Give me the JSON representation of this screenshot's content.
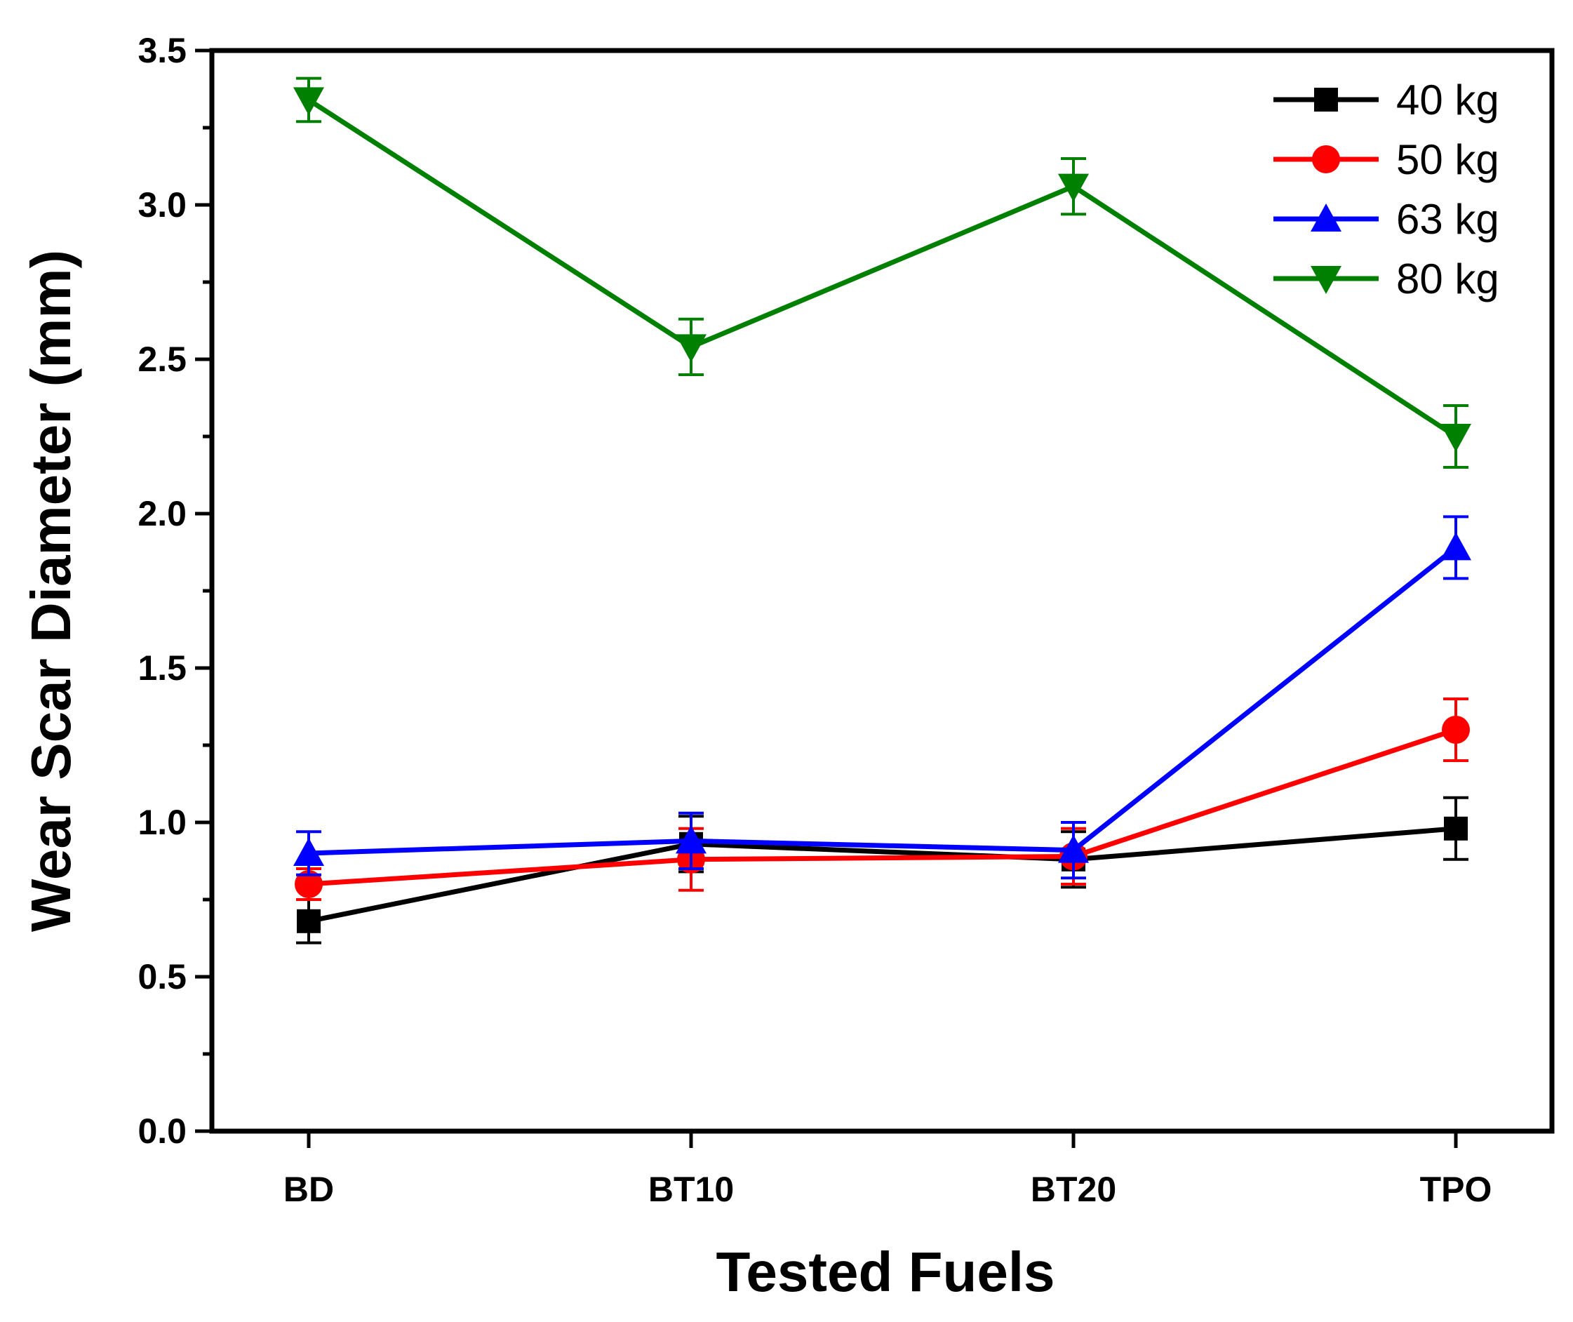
{
  "chart_data": {
    "type": "line",
    "title": "",
    "xlabel": "Tested Fuels",
    "ylabel": "Wear Scar Diameter (mm)",
    "categories": [
      "BD",
      "BT10",
      "BT20",
      "TPO"
    ],
    "ylim": [
      0.0,
      3.5
    ],
    "yticks": [
      "0.0",
      "0.5",
      "1.0",
      "1.5",
      "2.0",
      "2.5",
      "3.0",
      "3.5"
    ],
    "legend_position": "top-right",
    "grid": false,
    "series": [
      {
        "name": "40 kg",
        "color": "#000000",
        "marker": "square",
        "values": [
          0.68,
          0.93,
          0.88,
          0.98
        ],
        "errors": [
          0.07,
          0.09,
          0.09,
          0.1
        ]
      },
      {
        "name": "50 kg",
        "color": "#ff0000",
        "marker": "circle",
        "values": [
          0.8,
          0.88,
          0.89,
          1.3
        ],
        "errors": [
          0.05,
          0.1,
          0.09,
          0.1
        ]
      },
      {
        "name": "63 kg",
        "color": "#0000ff",
        "marker": "triangle-up",
        "values": [
          0.9,
          0.94,
          0.91,
          1.89
        ],
        "errors": [
          0.07,
          0.09,
          0.09,
          0.1
        ]
      },
      {
        "name": "80 kg",
        "color": "#008000",
        "marker": "triangle-down",
        "values": [
          3.34,
          2.54,
          3.06,
          2.25
        ],
        "errors": [
          0.07,
          0.09,
          0.09,
          0.1
        ]
      }
    ]
  }
}
